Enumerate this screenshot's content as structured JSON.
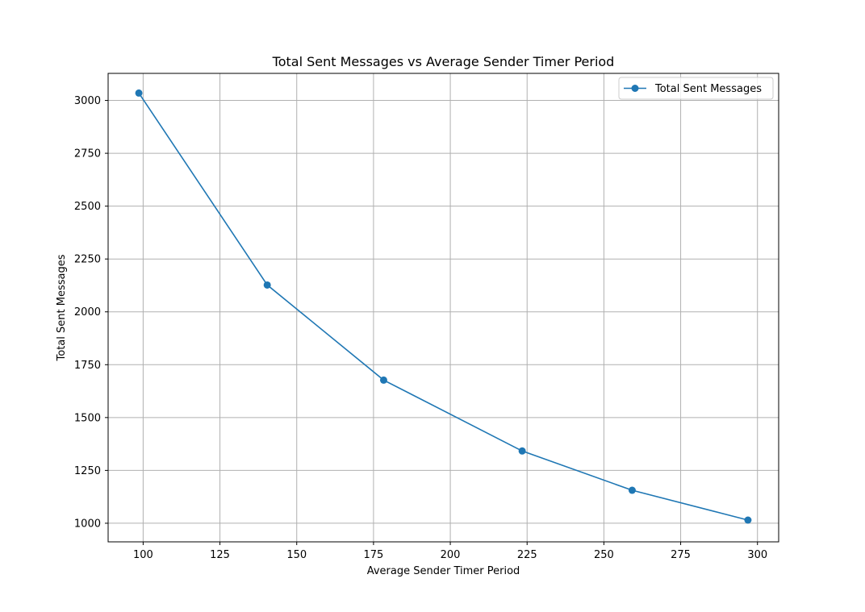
{
  "chart_data": {
    "type": "line",
    "title": "Total Sent Messages vs Average Sender Timer Period",
    "xlabel": "Average Sender Timer Period",
    "ylabel": "Total Sent Messages",
    "xlim": [
      88.6,
      306.9
    ],
    "ylim": [
      912,
      3128
    ],
    "xticks": [
      100,
      125,
      150,
      175,
      200,
      225,
      250,
      275,
      300
    ],
    "yticks": [
      1000,
      1250,
      1500,
      1750,
      2000,
      2250,
      2500,
      2750,
      3000
    ],
    "grid": true,
    "legend_position": "top-right",
    "series": [
      {
        "name": "Total Sent Messages",
        "color": "#1f77b4",
        "marker": "circle",
        "x": [
          98.6,
          140.4,
          178.3,
          223.4,
          259.2,
          296.9
        ],
        "y": [
          3035,
          2127,
          1677,
          1342,
          1156,
          1015
        ]
      }
    ]
  }
}
